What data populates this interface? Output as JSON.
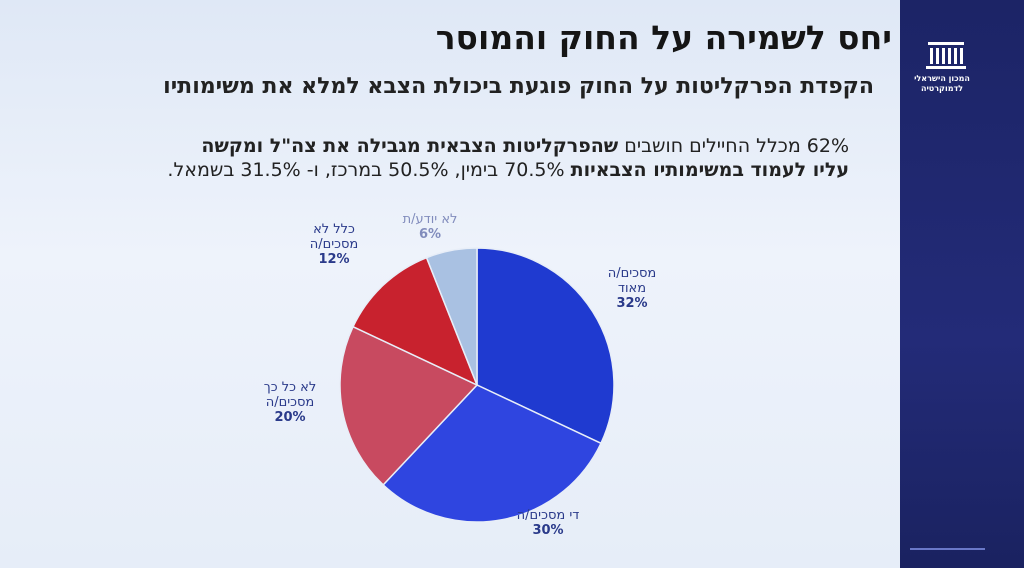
{
  "chart_data": {
    "type": "pie",
    "title": "יחס לשמירה על החוק והמוסר",
    "subtitle": "הקפדת הפרקליטות על החוק פוגעת ביכולת הצבא למלא את משימותיו",
    "note_parts": [
      "62% מכלל החיילים חושבים",
      "שהפרקליטות הצבאית מגבילה את צה\"ל ומקשה",
      "עליו לעמוד במשימותיו הצבאיות",
      "70.5% בימין, 50.5% במרכז, ו- 31.5% בשמאל."
    ],
    "logo": "המכון הישראלי לדמוקרטיה",
    "categories": [
      "מסכים/ה מאוד",
      "די מסכים/ה",
      "לא כל כך מסכים/ה",
      "כלל לא מסכים/ה",
      "לא יודע/ת"
    ],
    "values": [
      32,
      30,
      20,
      12,
      6
    ],
    "value_labels": [
      "32%",
      "30%",
      "20%",
      "12%",
      "6%"
    ],
    "colors": [
      "#1f3ad0",
      "#2f45e0",
      "#c84a60",
      "#c8222e",
      "#a9c1e2"
    ]
  }
}
